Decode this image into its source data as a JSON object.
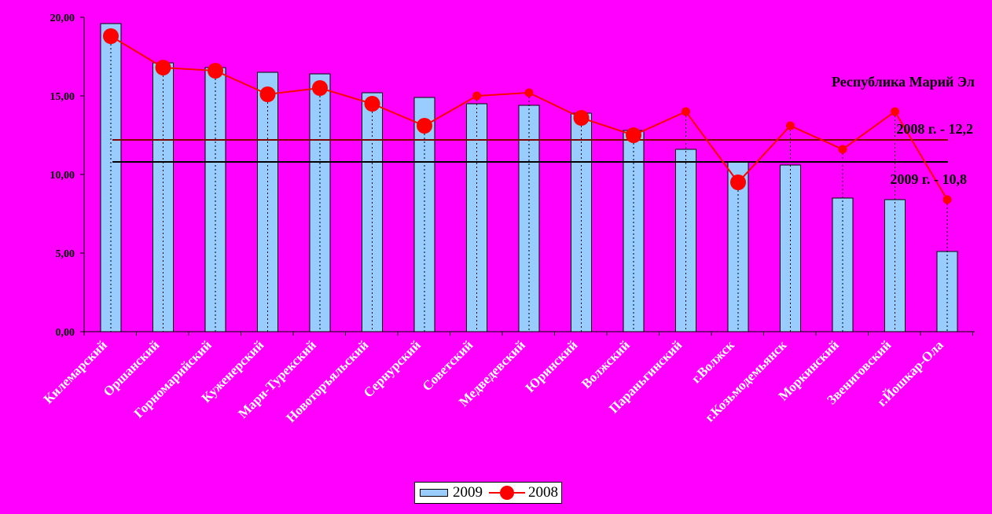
{
  "chart_data": {
    "type": "bar",
    "categories": [
      "Килемарский",
      "Оршанский",
      "Горномарийский",
      "Куженерский",
      "Мари-Турекский",
      "Новоторъяльский",
      "Сернурский",
      "Советский",
      "Медведевский",
      "Юринский",
      "Волжский",
      "Параньгинский",
      "г.Волжск",
      "г.Козьмодемьянск",
      "Моркинский",
      "Звениговский",
      "г.Йошкар-Ола"
    ],
    "series": [
      {
        "name": "2009",
        "type": "bar",
        "color": "#99CCFF",
        "values": [
          19.6,
          17.1,
          16.8,
          16.5,
          16.4,
          15.2,
          14.9,
          14.5,
          14.4,
          13.9,
          12.8,
          11.6,
          10.8,
          10.6,
          8.5,
          8.4,
          5.1
        ]
      },
      {
        "name": "2008",
        "type": "line",
        "color": "#FF0000",
        "values": [
          18.8,
          16.8,
          16.6,
          15.1,
          15.5,
          14.5,
          13.1,
          15.0,
          15.2,
          13.6,
          12.5,
          14.0,
          9.5,
          13.1,
          11.6,
          14.0,
          8.4
        ],
        "large_markers": [
          0,
          1,
          2,
          3,
          4,
          5,
          6,
          9,
          10,
          12
        ]
      }
    ],
    "ylim": [
      0,
      20
    ],
    "yticks": [
      "0,00",
      "5,00",
      "10,00",
      "15,00",
      "20,00"
    ],
    "reference_lines": [
      {
        "value": 12.2,
        "label": "2008 г. - 12,2",
        "color": "#800000"
      },
      {
        "value": 10.8,
        "label": "2009 г. - 10,8",
        "color": "#000000"
      }
    ],
    "annotation_title": "Республика Марий Эл",
    "legend": {
      "position": "bottom"
    }
  }
}
